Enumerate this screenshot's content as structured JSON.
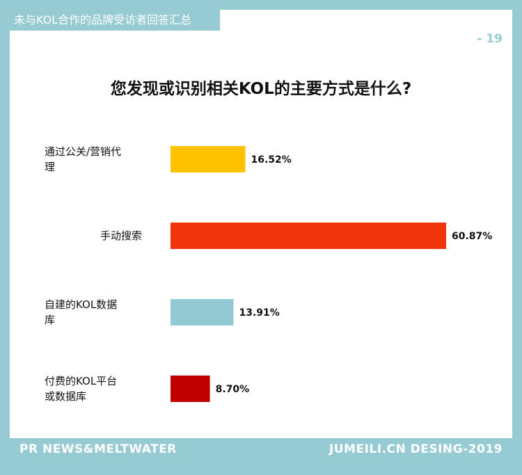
{
  "header": {
    "tag": "未与KOL合作的品牌受访者回答汇总",
    "page_number": "- 19"
  },
  "chart_data": {
    "type": "bar",
    "orientation": "horizontal",
    "title": "您发现或识别相关KOL的主要方式是什么?",
    "categories": [
      "通过公关/营销代理",
      "手动搜索",
      "自建的KOL数据库",
      "付费的KOL平台或数据库"
    ],
    "category_lines": [
      [
        "通过公关/营销代",
        "理"
      ],
      [
        "手动搜索"
      ],
      [
        "自建的KOL数据",
        "库"
      ],
      [
        "付费的KOL平台",
        "或数据库"
      ]
    ],
    "values": [
      16.52,
      60.87,
      13.91,
      8.7
    ],
    "value_labels": [
      "16.52%",
      "60.87%",
      "13.91%",
      "8.70%"
    ],
    "colors": [
      "#fec200",
      "#f2340d",
      "#93c9d3",
      "#c00000"
    ],
    "unit": "%",
    "grid": false,
    "legend": "none"
  },
  "footer": {
    "left": "PR NEWS&MELTWATER",
    "right": "JUMEILI.CN DESING-2019"
  },
  "colors": {
    "frame": "#96cbd3",
    "card": "#ffffff"
  }
}
